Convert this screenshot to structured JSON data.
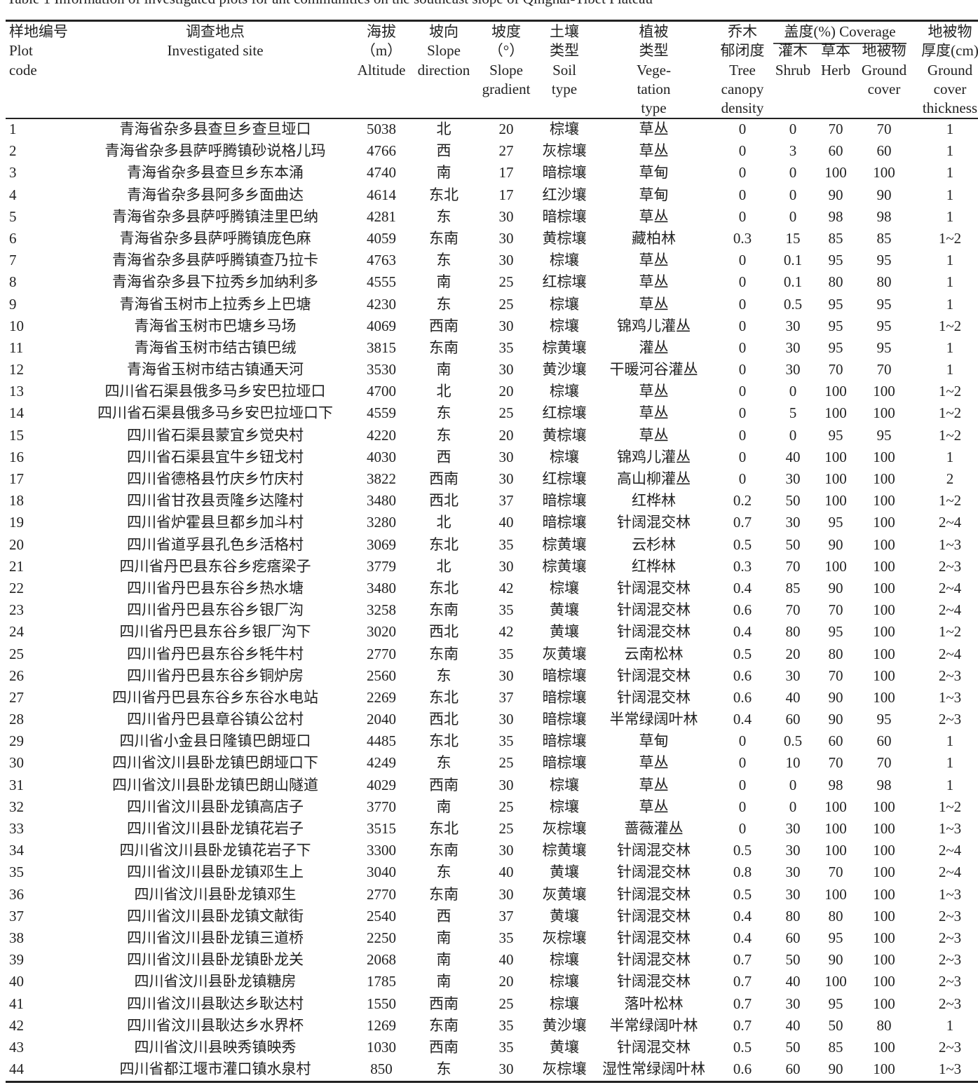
{
  "title": "Table 1    Information of investigated plots for ant communities on the southeast slope of Qinghai-Tibet Plateau",
  "header": {
    "code": [
      "样地编号",
      "Plot",
      "code"
    ],
    "site": [
      "调查地点",
      "Investigated site"
    ],
    "altitude": [
      "海拔",
      "（m）",
      "Altitude"
    ],
    "direction": [
      "坡向",
      "Slope",
      "direction"
    ],
    "gradient": [
      "坡度",
      "（°）",
      "Slope",
      "gradient"
    ],
    "soil": [
      "土壤",
      "类型",
      "Soil",
      "type"
    ],
    "vegetation": [
      "植被",
      "类型",
      "Vege-",
      "tation",
      "type"
    ],
    "canopy": [
      "乔木",
      "郁闭度",
      "Tree",
      "canopy",
      "density"
    ],
    "coverage_group": "盖度(%) Coverage",
    "shrub": [
      "灌木",
      "Shrub"
    ],
    "herb": [
      "草本",
      "Herb"
    ],
    "ground": [
      "地被物",
      "Ground",
      "cover"
    ],
    "thickness": [
      "地被物",
      "厚度(cm)",
      "Ground",
      "cover",
      "thickness"
    ]
  },
  "rows": [
    [
      "1",
      "青海省杂多县查旦乡查旦垭口",
      "5038",
      "北",
      "20",
      "棕壤",
      "草丛",
      "0",
      "0",
      "70",
      "70",
      "1"
    ],
    [
      "2",
      "青海省杂多县萨呼腾镇砂说格儿玛",
      "4766",
      "西",
      "27",
      "灰棕壤",
      "草丛",
      "0",
      "3",
      "60",
      "60",
      "1"
    ],
    [
      "3",
      "青海省杂多县查旦乡东本涌",
      "4740",
      "南",
      "17",
      "暗棕壤",
      "草甸",
      "0",
      "0",
      "100",
      "100",
      "1"
    ],
    [
      "4",
      "青海省杂多县阿多乡面曲达",
      "4614",
      "东北",
      "17",
      "红沙壤",
      "草甸",
      "0",
      "0",
      "90",
      "90",
      "1"
    ],
    [
      "5",
      "青海省杂多县萨呼腾镇洼里巴纳",
      "4281",
      "东",
      "30",
      "暗棕壤",
      "草丛",
      "0",
      "0",
      "98",
      "98",
      "1"
    ],
    [
      "6",
      "青海省杂多县萨呼腾镇庞色麻",
      "4059",
      "东南",
      "30",
      "黄棕壤",
      "藏柏林",
      "0.3",
      "15",
      "85",
      "85",
      "1~2"
    ],
    [
      "7",
      "青海省杂多县萨呼腾镇查乃拉卡",
      "4763",
      "东",
      "30",
      "棕壤",
      "草丛",
      "0",
      "0.1",
      "95",
      "95",
      "1"
    ],
    [
      "8",
      "青海省杂多县下拉秀乡加纳利多",
      "4555",
      "南",
      "25",
      "红棕壤",
      "草丛",
      "0",
      "0.1",
      "80",
      "80",
      "1"
    ],
    [
      "9",
      "青海省玉树市上拉秀乡上巴塘",
      "4230",
      "东",
      "25",
      "棕壤",
      "草丛",
      "0",
      "0.5",
      "95",
      "95",
      "1"
    ],
    [
      "10",
      "青海省玉树市巴塘乡马场",
      "4069",
      "西南",
      "30",
      "棕壤",
      "锦鸡儿灌丛",
      "0",
      "30",
      "95",
      "95",
      "1~2"
    ],
    [
      "11",
      "青海省玉树市结古镇巴绒",
      "3815",
      "东南",
      "35",
      "棕黄壤",
      "灌丛",
      "0",
      "30",
      "95",
      "95",
      "1"
    ],
    [
      "12",
      "青海省玉树市结古镇通天河",
      "3530",
      "南",
      "30",
      "黄沙壤",
      "干暖河谷灌丛",
      "0",
      "30",
      "70",
      "70",
      "1"
    ],
    [
      "13",
      "四川省石渠县俄多马乡安巴拉垭口",
      "4700",
      "北",
      "20",
      "棕壤",
      "草丛",
      "0",
      "0",
      "100",
      "100",
      "1~2"
    ],
    [
      "14",
      "四川省石渠县俄多马乡安巴拉垭口下",
      "4559",
      "东",
      "25",
      "红棕壤",
      "草丛",
      "0",
      "5",
      "100",
      "100",
      "1~2"
    ],
    [
      "15",
      "四川省石渠县蒙宜乡觉央村",
      "4220",
      "东",
      "20",
      "黄棕壤",
      "草丛",
      "0",
      "0",
      "95",
      "95",
      "1~2"
    ],
    [
      "16",
      "四川省石渠县宜牛乡钮戈村",
      "4030",
      "西",
      "30",
      "棕壤",
      "锦鸡儿灌丛",
      "0",
      "40",
      "100",
      "100",
      "1"
    ],
    [
      "17",
      "四川省德格县竹庆乡竹庆村",
      "3822",
      "西南",
      "30",
      "红棕壤",
      "高山柳灌丛",
      "0",
      "30",
      "100",
      "100",
      "2"
    ],
    [
      "18",
      "四川省甘孜县贡隆乡达隆村",
      "3480",
      "西北",
      "37",
      "暗棕壤",
      "红桦林",
      "0.2",
      "50",
      "100",
      "100",
      "1~2"
    ],
    [
      "19",
      "四川省炉霍县旦都乡加斗村",
      "3280",
      "北",
      "40",
      "暗棕壤",
      "针阔混交林",
      "0.7",
      "30",
      "95",
      "100",
      "2~4"
    ],
    [
      "20",
      "四川省道孚县孔色乡活格村",
      "3069",
      "东北",
      "35",
      "棕黄壤",
      "云杉林",
      "0.5",
      "50",
      "90",
      "100",
      "1~3"
    ],
    [
      "21",
      "四川省丹巴县东谷乡疙瘩梁子",
      "3779",
      "北",
      "30",
      "棕黄壤",
      "红桦林",
      "0.3",
      "70",
      "100",
      "100",
      "2~3"
    ],
    [
      "22",
      "四川省丹巴县东谷乡热水塘",
      "3480",
      "东北",
      "42",
      "棕壤",
      "针阔混交林",
      "0.4",
      "85",
      "90",
      "100",
      "2~4"
    ],
    [
      "23",
      "四川省丹巴县东谷乡银厂沟",
      "3258",
      "东南",
      "35",
      "黄壤",
      "针阔混交林",
      "0.6",
      "70",
      "70",
      "100",
      "2~4"
    ],
    [
      "24",
      "四川省丹巴县东谷乡银厂沟下",
      "3020",
      "西北",
      "42",
      "黄壤",
      "针阔混交林",
      "0.4",
      "80",
      "95",
      "100",
      "1~2"
    ],
    [
      "25",
      "四川省丹巴县东谷乡牦牛村",
      "2770",
      "东南",
      "35",
      "灰黄壤",
      "云南松林",
      "0.5",
      "20",
      "80",
      "100",
      "2~4"
    ],
    [
      "26",
      "四川省丹巴县东谷乡铜炉房",
      "2560",
      "东",
      "30",
      "暗棕壤",
      "针阔混交林",
      "0.6",
      "30",
      "70",
      "100",
      "2~3"
    ],
    [
      "27",
      "四川省丹巴县东谷乡东谷水电站",
      "2269",
      "东北",
      "37",
      "暗棕壤",
      "针阔混交林",
      "0.6",
      "40",
      "90",
      "100",
      "1~3"
    ],
    [
      "28",
      "四川省丹巴县章谷镇公岔村",
      "2040",
      "西北",
      "30",
      "暗棕壤",
      "半常绿阔叶林",
      "0.4",
      "60",
      "90",
      "95",
      "2~3"
    ],
    [
      "29",
      "四川省小金县日隆镇巴朗垭口",
      "4485",
      "东北",
      "35",
      "暗棕壤",
      "草甸",
      "0",
      "0.5",
      "60",
      "60",
      "1"
    ],
    [
      "30",
      "四川省汶川县卧龙镇巴朗垭口下",
      "4249",
      "东",
      "25",
      "暗棕壤",
      "草丛",
      "0",
      "10",
      "70",
      "70",
      "1"
    ],
    [
      "31",
      "四川省汶川县卧龙镇巴朗山隧道",
      "4029",
      "西南",
      "30",
      "棕壤",
      "草丛",
      "0",
      "0",
      "98",
      "98",
      "1"
    ],
    [
      "32",
      "四川省汶川县卧龙镇高店子",
      "3770",
      "南",
      "25",
      "棕壤",
      "草丛",
      "0",
      "0",
      "100",
      "100",
      "1~2"
    ],
    [
      "33",
      "四川省汶川县卧龙镇花岩子",
      "3515",
      "东北",
      "25",
      "灰棕壤",
      "蔷薇灌丛",
      "0",
      "30",
      "100",
      "100",
      "1~3"
    ],
    [
      "34",
      "四川省汶川县卧龙镇花岩子下",
      "3300",
      "东南",
      "30",
      "棕黄壤",
      "针阔混交林",
      "0.5",
      "30",
      "100",
      "100",
      "2~4"
    ],
    [
      "35",
      "四川省汶川县卧龙镇邓生上",
      "3040",
      "东",
      "40",
      "黄壤",
      "针阔混交林",
      "0.8",
      "30",
      "70",
      "100",
      "2~4"
    ],
    [
      "36",
      "四川省汶川县卧龙镇邓生",
      "2770",
      "东南",
      "30",
      "灰黄壤",
      "针阔混交林",
      "0.5",
      "30",
      "100",
      "100",
      "1~3"
    ],
    [
      "37",
      "四川省汶川县卧龙镇文献街",
      "2540",
      "西",
      "37",
      "黄壤",
      "针阔混交林",
      "0.4",
      "80",
      "80",
      "100",
      "2~3"
    ],
    [
      "38",
      "四川省汶川县卧龙镇三道桥",
      "2250",
      "南",
      "35",
      "灰棕壤",
      "针阔混交林",
      "0.4",
      "60",
      "95",
      "100",
      "2~3"
    ],
    [
      "39",
      "四川省汶川县卧龙镇卧龙关",
      "2068",
      "南",
      "40",
      "棕壤",
      "针阔混交林",
      "0.7",
      "50",
      "90",
      "100",
      "2~3"
    ],
    [
      "40",
      "四川省汶川县卧龙镇糖房",
      "1785",
      "南",
      "20",
      "棕壤",
      "针阔混交林",
      "0.7",
      "40",
      "100",
      "100",
      "2~3"
    ],
    [
      "41",
      "四川省汶川县耿达乡耿达村",
      "1550",
      "西南",
      "25",
      "棕壤",
      "落叶松林",
      "0.7",
      "30",
      "95",
      "100",
      "2~3"
    ],
    [
      "42",
      "四川省汶川县耿达乡水界杯",
      "1269",
      "东南",
      "35",
      "黄沙壤",
      "半常绿阔叶林",
      "0.7",
      "40",
      "50",
      "80",
      "1"
    ],
    [
      "43",
      "四川省汶川县映秀镇映秀",
      "1030",
      "西南",
      "35",
      "黄壤",
      "针阔混交林",
      "0.5",
      "50",
      "85",
      "100",
      "2~3"
    ],
    [
      "44",
      "四川省都江堰市灌口镇水泉村",
      "850",
      "东",
      "30",
      "灰棕壤",
      "湿性常绿阔叶林",
      "0.6",
      "60",
      "90",
      "100",
      "1~3"
    ]
  ]
}
